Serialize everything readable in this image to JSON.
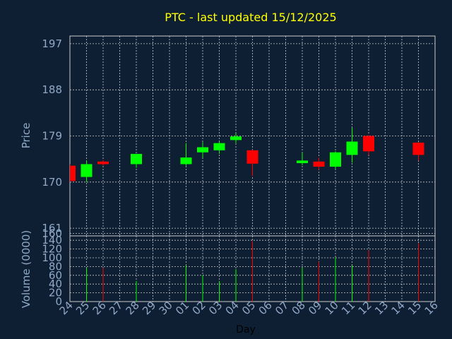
{
  "chart_data": {
    "type": "candlestick",
    "title": "PTC - last updated 15/12/2025",
    "xlabel": "Day",
    "price_axis": {
      "ylabel": "Price",
      "ylim": [
        159.5,
        198.5
      ],
      "ticks": [
        160,
        161,
        170,
        179,
        188,
        197
      ]
    },
    "volume_axis": {
      "ylabel": "Volume (0000)",
      "ylim": [
        0,
        150
      ],
      "ticks": [
        0,
        20,
        40,
        60,
        80,
        100,
        120,
        140
      ]
    },
    "x_tick_labels": [
      "24",
      "25",
      "26",
      "27",
      "28",
      "29",
      "30",
      "01",
      "02",
      "03",
      "04",
      "05",
      "06",
      "07",
      "08",
      "09",
      "10",
      "11",
      "12",
      "13",
      "14",
      "15",
      "16"
    ],
    "grid": true,
    "colors": {
      "background": "#0f1f33",
      "title": "#ffff00",
      "axis_text": "#8fa9c7",
      "grid": "#c8c8c8",
      "up": "#00ff00",
      "down": "#ff0000"
    },
    "candles": [
      {
        "x": 24,
        "open": 173.2,
        "high": 173.5,
        "low": 170.0,
        "close": 170.2,
        "volume": 0
      },
      {
        "x": 25,
        "open": 171.0,
        "high": 174.2,
        "low": 170.0,
        "close": 173.5,
        "volume": 77
      },
      {
        "x": 26,
        "open": 174.0,
        "high": 174.3,
        "low": 173.2,
        "close": 173.5,
        "volume": 77
      },
      {
        "x": 28,
        "open": 173.5,
        "high": 175.5,
        "low": 172.8,
        "close": 175.5,
        "volume": 47
      },
      {
        "x": 1,
        "open": 173.5,
        "high": 177.6,
        "low": 173.2,
        "close": 174.8,
        "volume": 83
      },
      {
        "x": 2,
        "open": 175.8,
        "high": 177.8,
        "low": 174.8,
        "close": 176.8,
        "volume": 60
      },
      {
        "x": 3,
        "open": 176.2,
        "high": 177.9,
        "low": 175.5,
        "close": 177.6,
        "volume": 47
      },
      {
        "x": 4,
        "open": 178.2,
        "high": 179.5,
        "low": 177.6,
        "close": 178.9,
        "volume": 74
      },
      {
        "x": 5,
        "open": 176.2,
        "high": 176.3,
        "low": 171.2,
        "close": 173.6,
        "volume": 138
      },
      {
        "x": 8,
        "open": 173.7,
        "high": 175.7,
        "low": 173.3,
        "close": 174.2,
        "volume": 78
      },
      {
        "x": 9,
        "open": 174.0,
        "high": 174.8,
        "low": 172.4,
        "close": 173.0,
        "volume": 91
      },
      {
        "x": 10,
        "open": 173.0,
        "high": 176.0,
        "low": 172.6,
        "close": 175.8,
        "volume": 101
      },
      {
        "x": 11,
        "open": 175.3,
        "high": 180.6,
        "low": 173.8,
        "close": 177.9,
        "volume": 83
      },
      {
        "x": 12,
        "open": 179.0,
        "high": 179.2,
        "low": 175.3,
        "close": 176.0,
        "volume": 117
      },
      {
        "x": 15,
        "open": 177.7,
        "high": 177.8,
        "low": 174.2,
        "close": 175.3,
        "volume": 133
      }
    ]
  }
}
